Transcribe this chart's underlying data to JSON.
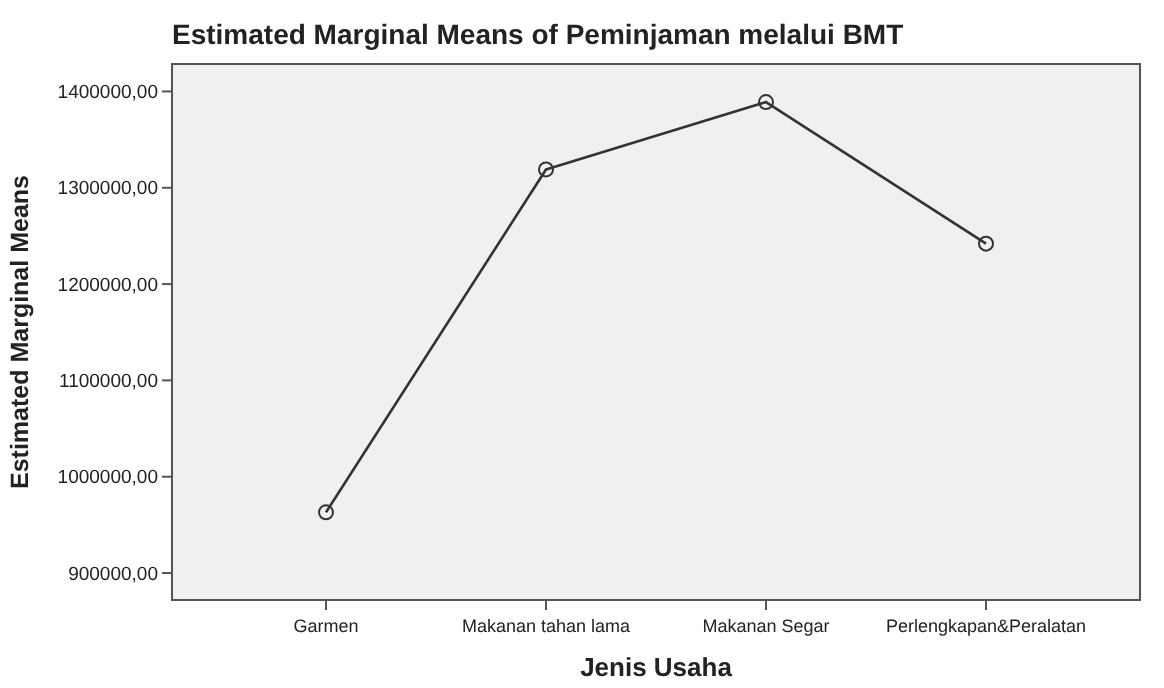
{
  "chart_data": {
    "type": "line",
    "title": "Estimated Marginal Means of Peminjaman melalui BMT",
    "xlabel": "Jenis Usaha",
    "ylabel": "Estimated Marginal Means",
    "categories": [
      "Garmen",
      "Makanan tahan lama",
      "Makanan Segar",
      "Perlengkapan&Peralatan"
    ],
    "series": [
      {
        "color": "#333333",
        "values": [
          963000,
          1319000,
          1389000,
          1242000
        ]
      }
    ],
    "ylim": [
      872000,
      1428500
    ],
    "yticks": [
      {
        "value": 900000,
        "label": "900000,00"
      },
      {
        "value": 1000000,
        "label": "1000000,00"
      },
      {
        "value": 1100000,
        "label": "1100000,00"
      },
      {
        "value": 1200000,
        "label": "1200000,00"
      },
      {
        "value": 1300000,
        "label": "1300000,00"
      },
      {
        "value": 1400000,
        "label": "1400000,00"
      }
    ],
    "marker": "circle",
    "line_style": "solid"
  }
}
